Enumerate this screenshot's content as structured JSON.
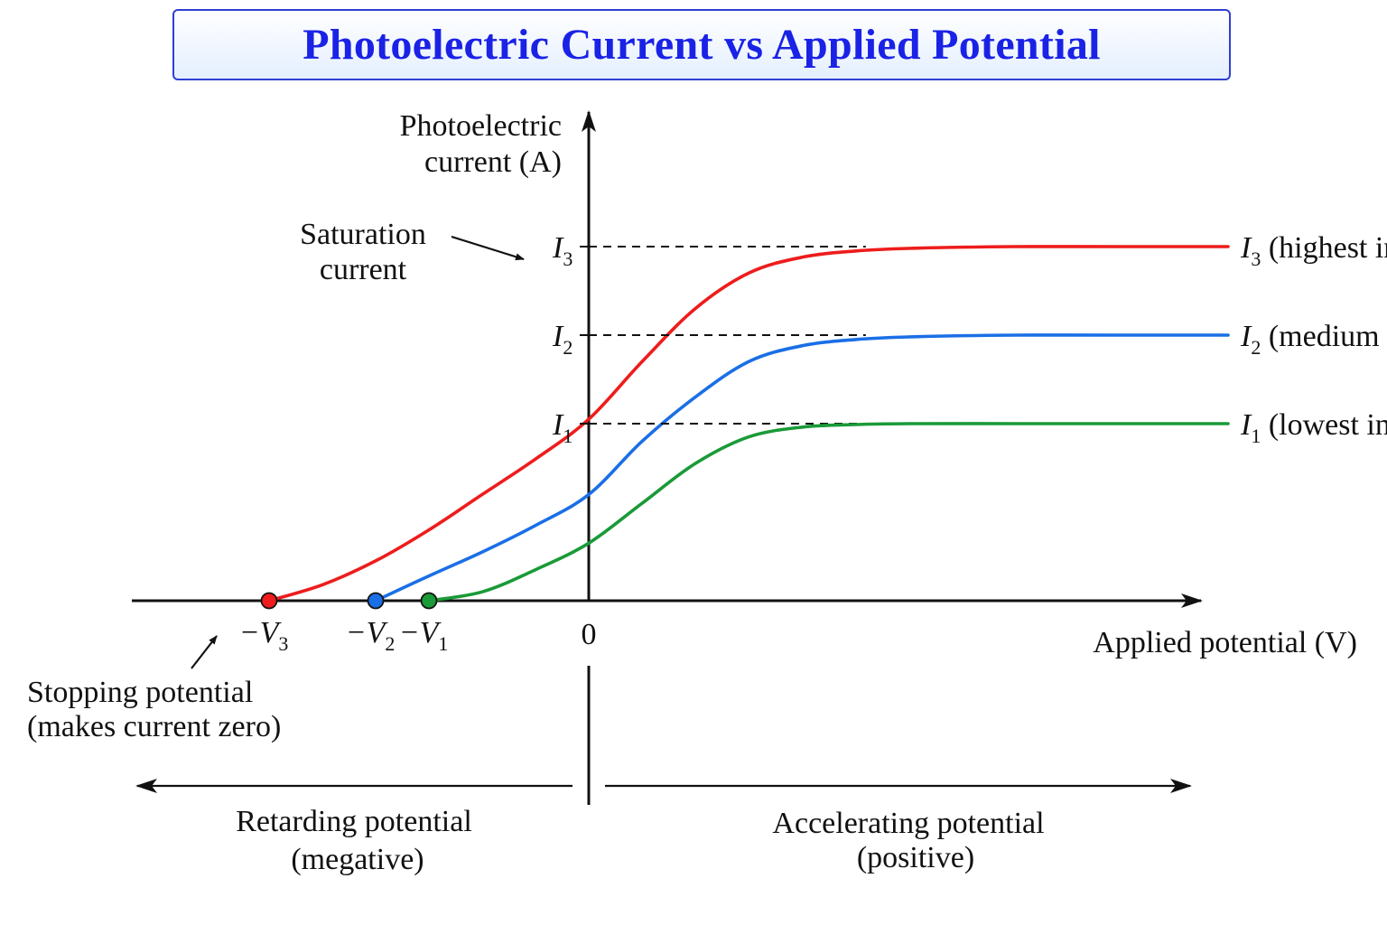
{
  "title": "Photoelectric Current vs Applied Potential",
  "chart_data": {
    "type": "line",
    "title": "Photoelectric Current vs Applied Potential",
    "xlabel": "Applied potential (V)",
    "ylabel_line1": "Photoelectric",
    "ylabel_line2": "current (A)",
    "origin_label": "0",
    "xlim": [
      -3.5,
      6.5
    ],
    "ylim": [
      0,
      4.2
    ],
    "grid": false,
    "series": [
      {
        "key": "I3",
        "sym": "I",
        "sub": "3",
        "label_rest": " (highest intensity)",
        "color": "#ee1c1c",
        "stopping": {
          "sym": "−V",
          "sub": "3"
        },
        "x": [
          -3.0,
          -2.5,
          -2.0,
          -1.5,
          -1.0,
          -0.5,
          0.0,
          0.5,
          1.0,
          1.5,
          2.0,
          2.5,
          3.0,
          4.0,
          5.0,
          6.0
        ],
        "y": [
          0.0,
          0.18,
          0.45,
          0.8,
          1.2,
          1.6,
          2.05,
          2.7,
          3.3,
          3.7,
          3.88,
          3.95,
          3.98,
          4.0,
          4.0,
          4.0
        ]
      },
      {
        "key": "I2",
        "sym": "I",
        "sub": "2",
        "label_rest": " (medium intensity)",
        "color": "#1a6fe6",
        "stopping": {
          "sym": "−V",
          "sub": "2"
        },
        "x": [
          -2.0,
          -1.5,
          -1.0,
          -0.5,
          0.0,
          0.5,
          1.0,
          1.5,
          2.0,
          2.5,
          3.0,
          4.0,
          5.0,
          6.0
        ],
        "y": [
          0.0,
          0.28,
          0.55,
          0.85,
          1.2,
          1.8,
          2.3,
          2.7,
          2.88,
          2.95,
          2.98,
          3.0,
          3.0,
          3.0
        ]
      },
      {
        "key": "I1",
        "sym": "I",
        "sub": "1",
        "label_rest": " (lowest intensity)",
        "color": "#1a9a38",
        "stopping": {
          "sym": "−V",
          "sub": "1"
        },
        "x": [
          -1.5,
          -1.0,
          -0.5,
          0.0,
          0.5,
          1.0,
          1.5,
          2.0,
          2.5,
          3.0,
          4.0,
          5.0,
          6.0
        ],
        "y": [
          0.0,
          0.1,
          0.35,
          0.65,
          1.1,
          1.55,
          1.85,
          1.96,
          1.99,
          2.0,
          2.0,
          2.0,
          2.0
        ]
      }
    ]
  },
  "annotations": {
    "saturation_line1": "Saturation",
    "saturation_line2": "current",
    "stopping_line1": "Stopping potential",
    "stopping_line2": "(makes current zero)",
    "retarding_line1": "Retarding potential",
    "retarding_line2": "(megative)",
    "accelerating_line1": "Accelerating potential",
    "accelerating_line2": "(positive)"
  }
}
